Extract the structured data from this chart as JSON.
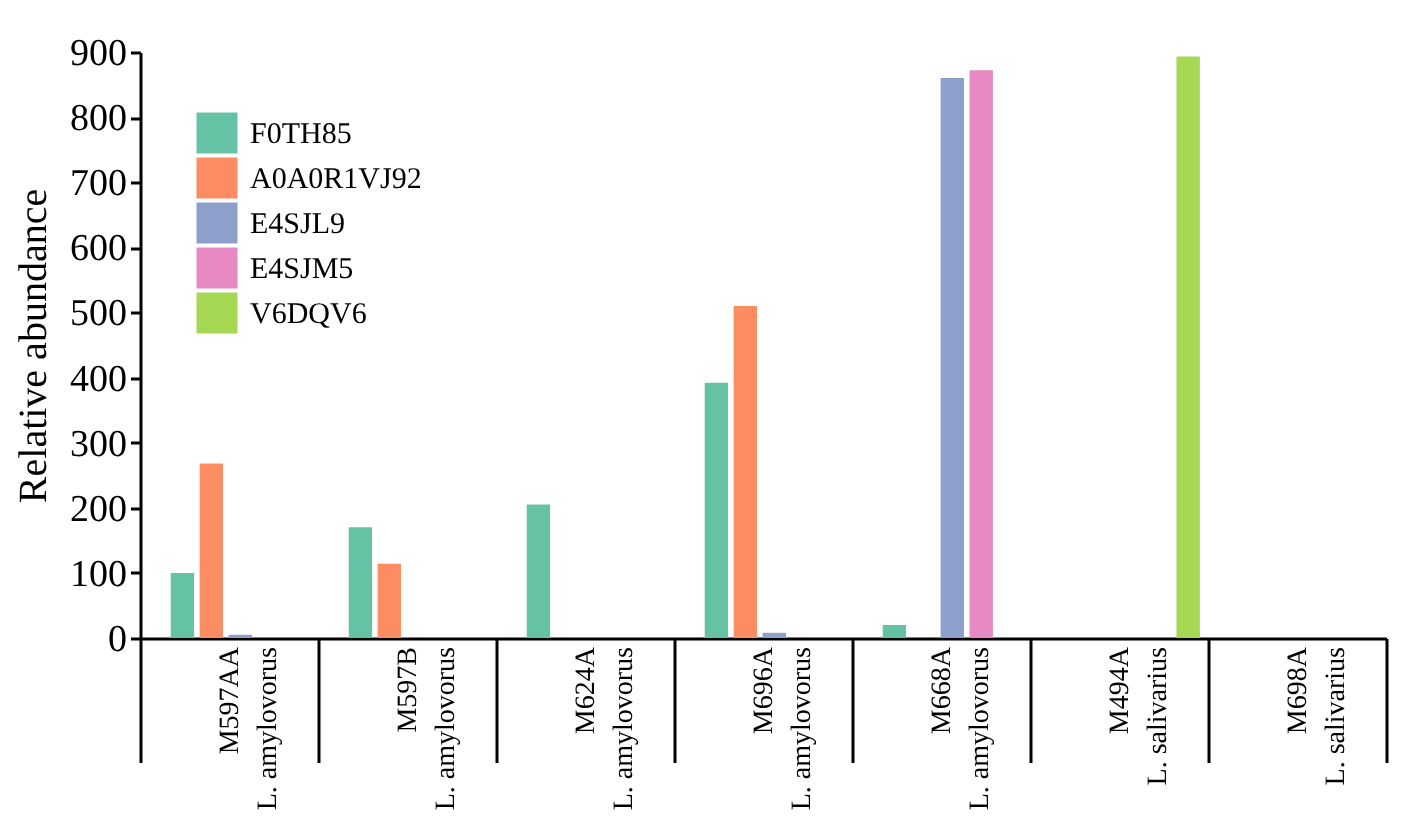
{
  "chart_data": {
    "type": "bar",
    "ylabel": "Relative abundance",
    "categories": [
      "M597AA\nL. amylovorus",
      "M597B\nL. amylovorus",
      "M624A\nL. amylovorus",
      "M696A\nL. amylovorus",
      "M668A\nL. amylovorus",
      "M494A\nL. salivarius",
      "M698A\nL. salivarius"
    ],
    "series": [
      {
        "name": "F0TH85",
        "color": "#66c2a5",
        "values": [
          100,
          170,
          205,
          392,
          20,
          0,
          0
        ]
      },
      {
        "name": "A0A0R1VJ92",
        "color": "#fc8d62",
        "values": [
          268,
          114,
          0,
          510,
          0,
          0,
          0
        ]
      },
      {
        "name": "E4SJL9",
        "color": "#8da0cb",
        "values": [
          5,
          0,
          0,
          8,
          860,
          0,
          0
        ]
      },
      {
        "name": "E4SJM5",
        "color": "#e78ac3",
        "values": [
          0,
          0,
          0,
          0,
          872,
          0,
          0
        ]
      },
      {
        "name": "V6DQV6",
        "color": "#a6d854",
        "values": [
          0,
          0,
          0,
          0,
          0,
          893,
          0
        ]
      }
    ],
    "ylim": [
      0,
      900
    ],
    "yticks": [
      0,
      100,
      200,
      300,
      400,
      500,
      600,
      700,
      800,
      900
    ],
    "grid": false,
    "legend": "top left"
  }
}
